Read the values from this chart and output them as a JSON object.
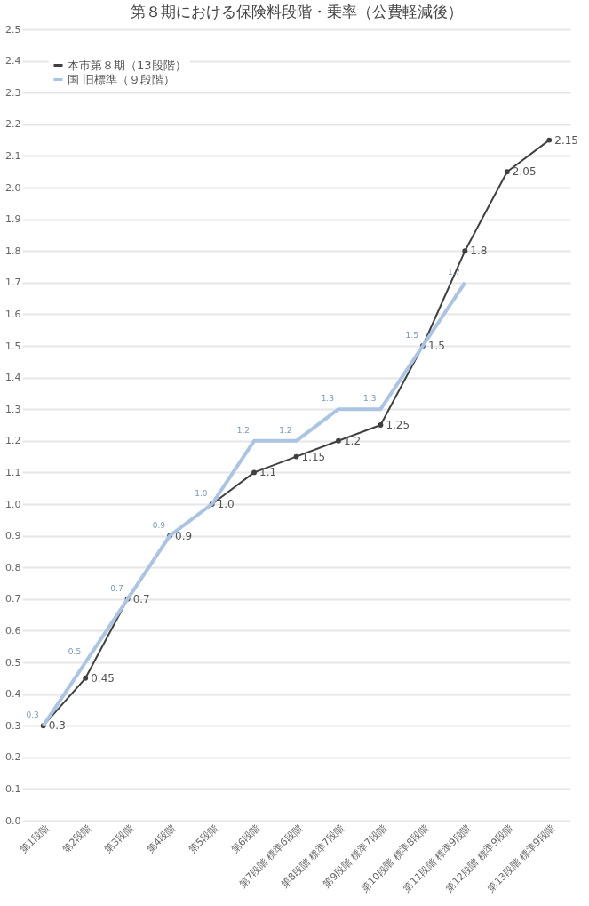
{
  "chart_data": {
    "type": "line",
    "title": "第８期における保険料段階・乗率（公費軽減後）",
    "categories": [
      "第1段階",
      "第2段階",
      "第3段階",
      "第4段階",
      "第5段階",
      "第6段階",
      "第7段階 標準6段階",
      "第8段階 標準7段階",
      "第9段階 標準7段階",
      "第10段階 標準8段階",
      "第11段階 標準9段階",
      "第12段階 標準9段階",
      "第13段階 標準9段階"
    ],
    "series": [
      {
        "name": "本市第８期（13段階）",
        "color": "#404040",
        "marker": "circle",
        "values": [
          0.3,
          0.45,
          0.7,
          0.9,
          1.0,
          1.1,
          1.15,
          1.2,
          1.25,
          1.5,
          1.8,
          2.05,
          2.15
        ],
        "value_labels": [
          "0.3",
          "0.45",
          "0.7",
          "0.9",
          "1.0",
          "1.1",
          "1.15",
          "1.2",
          "1.25",
          "1.5",
          "1.8",
          "2.05",
          "2.15"
        ]
      },
      {
        "name": "国 旧標準（９段階）",
        "color": "#a9c4e4",
        "marker": "none",
        "values": [
          0.3,
          0.5,
          0.7,
          0.9,
          1.0,
          1.2,
          1.2,
          1.3,
          1.3,
          1.5,
          1.7,
          null,
          null
        ],
        "value_labels": [
          "0.3",
          "0.5",
          "0.7",
          "0.9",
          "1.0",
          "1.2",
          "1.2",
          "1.3",
          "1.3",
          "1.5",
          "1.7",
          null,
          null
        ]
      }
    ],
    "ylim": [
      0,
      2.5
    ],
    "yticks": [
      {
        "value": 0,
        "label": "0.0"
      },
      {
        "value": 0.1,
        "label": "0.1"
      },
      {
        "value": 0.2,
        "label": "0.2"
      },
      {
        "value": 0.3,
        "label": "0.3"
      },
      {
        "value": 0.4,
        "label": "0.4"
      },
      {
        "value": 0.5,
        "label": "0.5"
      },
      {
        "value": 0.6,
        "label": "0.6"
      },
      {
        "value": 0.7,
        "label": "0.7"
      },
      {
        "value": 0.8,
        "label": "0.8"
      },
      {
        "value": 0.9,
        "label": "0.9"
      },
      {
        "value": 1.0,
        "label": "1.0"
      },
      {
        "value": 1.1,
        "label": "1.1"
      },
      {
        "value": 1.2,
        "label": "1.2"
      },
      {
        "value": 1.3,
        "label": "1.3"
      },
      {
        "value": 1.4,
        "label": "1.4"
      },
      {
        "value": 1.5,
        "label": "1.5"
      },
      {
        "value": 1.6,
        "label": "1.6"
      },
      {
        "value": 1.7,
        "label": "1.7"
      },
      {
        "value": 1.8,
        "label": "1.8"
      },
      {
        "value": 1.9,
        "label": "1.9"
      },
      {
        "value": 2.0,
        "label": "2.0"
      },
      {
        "value": 2.1,
        "label": "2.1"
      },
      {
        "value": 2.2,
        "label": "2.2"
      },
      {
        "value": 2.3,
        "label": "2.3"
      },
      {
        "value": 2.4,
        "label": "2.4"
      },
      {
        "value": 2.5,
        "label": "2.5"
      }
    ],
    "grid": "y",
    "legend": "top left",
    "line_style": "solid"
  }
}
